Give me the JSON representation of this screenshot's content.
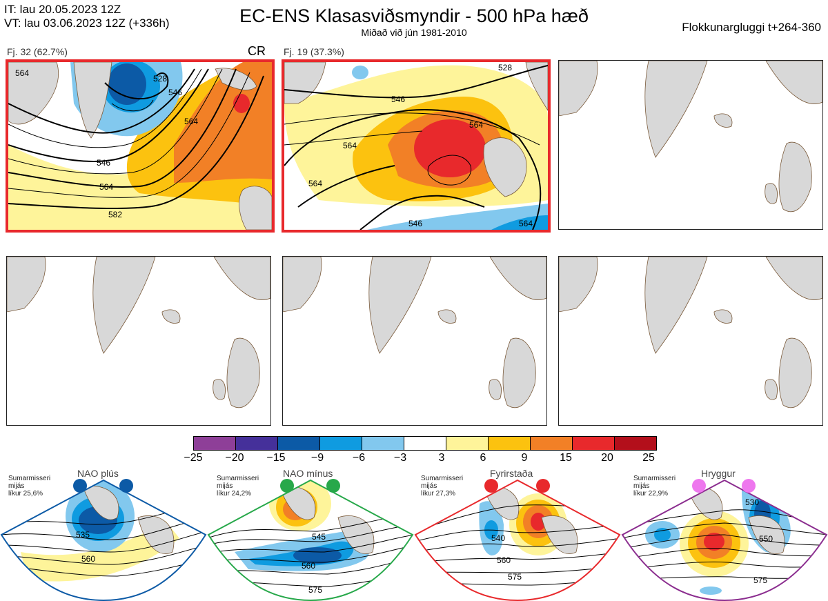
{
  "header": {
    "it": "IT: lau 20.05.2023 12Z",
    "vt": "VT: lau 03.06.2023 12Z  (+336h)",
    "title": "EC-ENS Klasasviðsmyndir - 500 hPa hæð",
    "subtitle": "Miðað við jún 1981-2010",
    "window": "Flokkunargluggi t+264-360"
  },
  "panels": [
    {
      "label": "Fj. 32 (62.7%)",
      "tag": "CR",
      "contours": [
        "564",
        "528",
        "546",
        "564",
        "546",
        "564",
        "582"
      ]
    },
    {
      "label": "Fj. 19 (37.3%)",
      "contours": [
        "528",
        "546",
        "564",
        "564",
        "564",
        "546",
        "564"
      ]
    }
  ],
  "colorbar": {
    "colors": [
      "#8e3f98",
      "#45309a",
      "#0c5aa6",
      "#0f9be0",
      "#82c8ee",
      "#ffffff",
      "#fef49a",
      "#fcc20f",
      "#f28026",
      "#e8292c",
      "#b30f1b"
    ],
    "ticks": [
      "−25",
      "−20",
      "−15",
      "−9",
      "−6",
      "−3",
      "3",
      "6",
      "9",
      "15",
      "20",
      "25"
    ]
  },
  "regimes": [
    {
      "name": "NAO plús",
      "season": "Sumarmisseri",
      "period": "mijás",
      "prob": "líkur 25,6%",
      "color": "#0c5aa6",
      "labels": [
        "535",
        "560"
      ]
    },
    {
      "name": "NAO mínus",
      "season": "Sumarmisseri",
      "period": "mijás",
      "prob": "líkur 24,2%",
      "color": "#27a84a",
      "labels": [
        "545",
        "560",
        "575"
      ]
    },
    {
      "name": "Fyrirstaða",
      "season": "Sumarmisseri",
      "period": "mijás",
      "prob": "líkur 27,3%",
      "color": "#e8292c",
      "labels": [
        "540",
        "560",
        "575"
      ]
    },
    {
      "name": "Hryggur",
      "season": "Sumarmisseri",
      "period": "mijás",
      "prob": "líkur 22,9%",
      "color": "#8b2d8f",
      "labels": [
        "530",
        "550",
        "575"
      ]
    }
  ]
}
